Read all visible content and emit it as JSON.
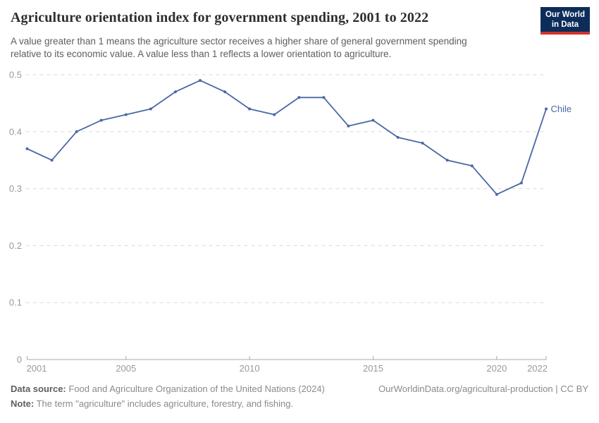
{
  "header": {
    "title": "Agriculture orientation index for government spending, 2001 to 2022",
    "subtitle_lines": [
      "A value greater than 1 means the agriculture sector receives a higher share of general government spending",
      "relative to its economic value. A value less than 1 reflects a lower orientation to agriculture."
    ],
    "logo": {
      "line1": "Our World",
      "line2": "in Data"
    }
  },
  "chart_data": {
    "type": "line",
    "title": "Agriculture orientation index for government spending, 2001 to 2022",
    "x": [
      2001,
      2002,
      2003,
      2004,
      2005,
      2006,
      2007,
      2008,
      2009,
      2010,
      2011,
      2012,
      2013,
      2014,
      2015,
      2016,
      2017,
      2018,
      2019,
      2020,
      2021,
      2022
    ],
    "series": [
      {
        "name": "Chile",
        "values": [
          0.37,
          0.35,
          0.4,
          0.42,
          0.43,
          0.44,
          0.47,
          0.49,
          0.47,
          0.44,
          0.43,
          0.46,
          0.46,
          0.41,
          0.42,
          0.39,
          0.38,
          0.35,
          0.34,
          0.29,
          0.31,
          0.44
        ]
      }
    ],
    "end_label": "Chile",
    "xlabel": "",
    "ylabel": "",
    "ylim": [
      0,
      0.5
    ],
    "yticks": [
      0,
      0.1,
      0.2,
      0.3,
      0.4,
      0.5
    ],
    "ytick_labels": [
      "0",
      "0.1",
      "0.2",
      "0.3",
      "0.4",
      "0.5"
    ],
    "xticks": [
      2001,
      2005,
      2010,
      2015,
      2020,
      2022
    ],
    "grid": "horizontal-dashed",
    "legend_position": "end-of-line"
  },
  "footer": {
    "datasource_label": "Data source:",
    "datasource_text": "Food and Agriculture Organization of the United Nations (2024)",
    "note_label": "Note:",
    "note_text": "The term \"agriculture\" includes agriculture, forestry, and fishing.",
    "citation": "OurWorldinData.org/agricultural-production | CC BY"
  },
  "colors": {
    "line": "#4a68a5",
    "grid": "#dadada",
    "axis": "#a8a8a8",
    "tick_label": "#999999",
    "title_text": "#2e2e2e",
    "subtitle_text": "#5b5e61",
    "logo_bg": "#0c2d5a",
    "logo_red": "#d0342c"
  }
}
